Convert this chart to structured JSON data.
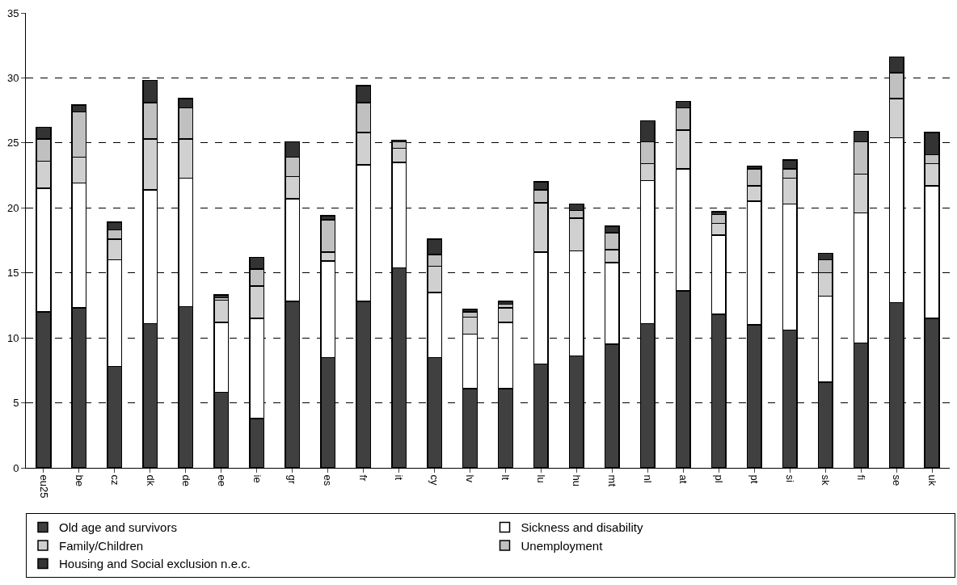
{
  "chart_data": {
    "type": "bar",
    "stacked": true,
    "categories": [
      "eu25",
      "be",
      "cz",
      "dk",
      "de",
      "ee",
      "ie",
      "gr",
      "es",
      "fr",
      "it",
      "cy",
      "lv",
      "lt",
      "lu",
      "hu",
      "mt",
      "nl",
      "at",
      "pl",
      "pt",
      "si",
      "sk",
      "fi",
      "se",
      "uk"
    ],
    "series": [
      {
        "name": "Old age and survivors",
        "color": "#404040",
        "values": [
          12.0,
          12.3,
          7.8,
          11.1,
          12.4,
          5.8,
          3.8,
          12.8,
          8.5,
          12.8,
          15.4,
          8.5,
          6.1,
          6.1,
          8.0,
          8.6,
          9.5,
          11.1,
          13.6,
          11.8,
          11.0,
          10.6,
          6.6,
          9.6,
          12.7,
          11.5
        ]
      },
      {
        "name": "Sickness and disability",
        "color": "#ffffff",
        "values": [
          9.5,
          9.6,
          8.2,
          10.3,
          9.9,
          5.4,
          7.7,
          7.9,
          7.4,
          10.5,
          8.1,
          5.0,
          4.2,
          5.1,
          8.6,
          8.1,
          6.3,
          11.0,
          9.4,
          6.1,
          9.5,
          9.7,
          6.6,
          10.0,
          12.7,
          10.2
        ]
      },
      {
        "name": "Family/Children",
        "color": "#d0d0d0",
        "values": [
          2.1,
          2.0,
          1.6,
          3.9,
          3.0,
          1.7,
          2.5,
          1.7,
          0.7,
          2.5,
          1.1,
          2.0,
          1.3,
          1.1,
          3.8,
          2.5,
          1.0,
          1.3,
          3.0,
          0.9,
          1.2,
          2.0,
          1.8,
          3.0,
          3.0,
          1.7
        ]
      },
      {
        "name": "Unemployment",
        "color": "#c0c0c0",
        "values": [
          1.7,
          3.5,
          0.7,
          2.8,
          2.4,
          0.2,
          1.3,
          1.5,
          2.5,
          2.3,
          0.5,
          0.9,
          0.4,
          0.3,
          1.0,
          0.6,
          1.3,
          1.7,
          1.7,
          0.7,
          1.3,
          0.7,
          1.0,
          2.5,
          2.0,
          0.7
        ]
      },
      {
        "name": "Housing and Social exclusion n.e.c.",
        "color": "#333333",
        "values": [
          0.9,
          0.5,
          0.6,
          1.7,
          0.7,
          0.2,
          0.9,
          1.2,
          0.3,
          1.3,
          0.1,
          1.2,
          0.2,
          0.2,
          0.6,
          0.5,
          0.5,
          1.6,
          0.5,
          0.2,
          0.2,
          0.7,
          0.5,
          0.8,
          1.2,
          1.7
        ]
      }
    ],
    "ylim": [
      0,
      35
    ],
    "yticks": [
      0,
      5,
      10,
      15,
      20,
      25,
      30,
      35
    ],
    "grid": "y",
    "legend": "bottom"
  }
}
